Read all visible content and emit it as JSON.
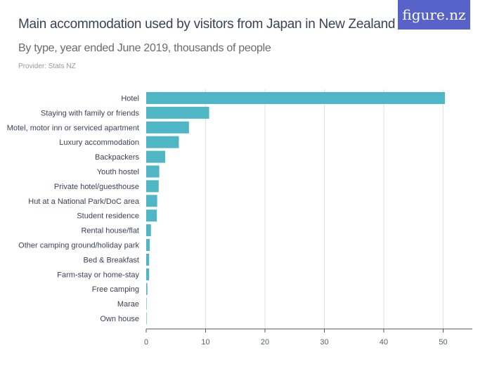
{
  "header": {
    "title": "Main accommodation used by visitors from Japan in New Zealand",
    "subtitle": "By type, year ended June 2019, thousands of people",
    "provider": "Provider: Stats NZ",
    "logo": "figure.nz"
  },
  "chart_data": {
    "type": "bar",
    "orientation": "horizontal",
    "categories": [
      "Hotel",
      "Staying with family or friends",
      "Motel, motor inn or serviced apartment",
      "Luxury accommodation",
      "Backpackers",
      "Youth hostel",
      "Private hotel/guesthouse",
      "Hut at a National Park/DoC area",
      "Student residence",
      "Rental house/flat",
      "Other camping ground/holiday park",
      "Bed & Breakfast",
      "Farm-stay or home-stay",
      "Free camping",
      "Marae",
      "Own house"
    ],
    "values": [
      50.3,
      10.6,
      7.2,
      5.5,
      3.2,
      2.2,
      2.1,
      1.85,
      1.8,
      0.8,
      0.6,
      0.5,
      0.5,
      0.2,
      0.05,
      0.03
    ],
    "xlim": [
      0,
      55
    ],
    "xticks": [
      0,
      10,
      20,
      30,
      40,
      50
    ],
    "grid": true,
    "bar_color": "#4eb6c4"
  }
}
